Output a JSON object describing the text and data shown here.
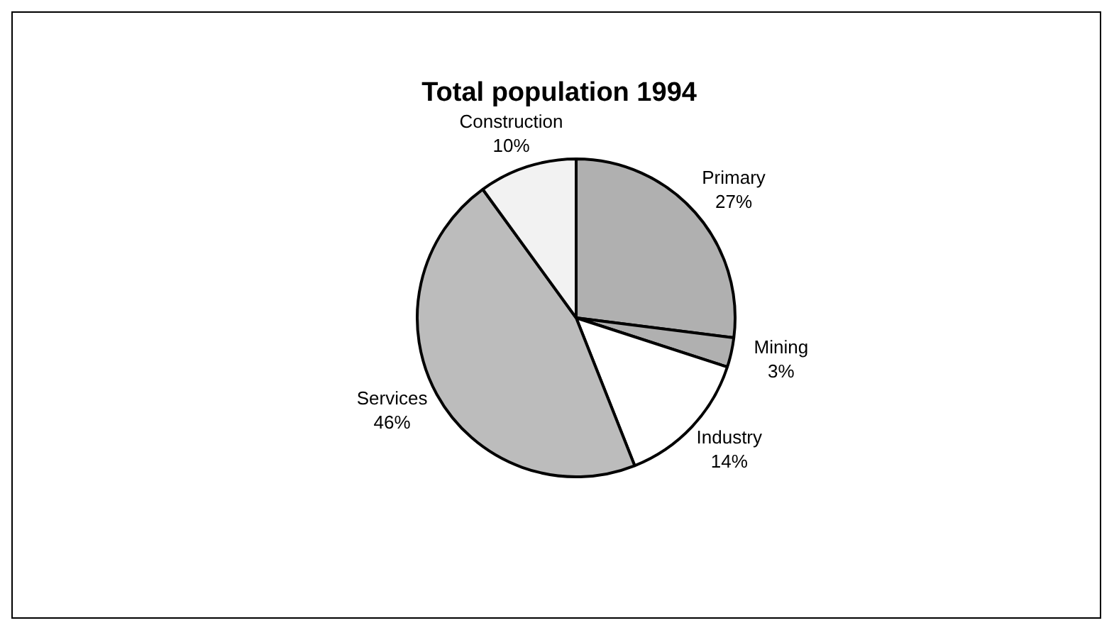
{
  "chart_data": {
    "type": "pie",
    "title": "Total population 1994",
    "categories": [
      "Primary",
      "Mining",
      "Industry",
      "Services",
      "Construction"
    ],
    "values": [
      27,
      3,
      14,
      46,
      10
    ],
    "colors": [
      "#b0b0b0",
      "#b0b0b0",
      "#ffffff",
      "#bcbcbc",
      "#f2f2f2"
    ],
    "value_labels": [
      "27%",
      "3%",
      "14%",
      "46%",
      "10%"
    ]
  }
}
